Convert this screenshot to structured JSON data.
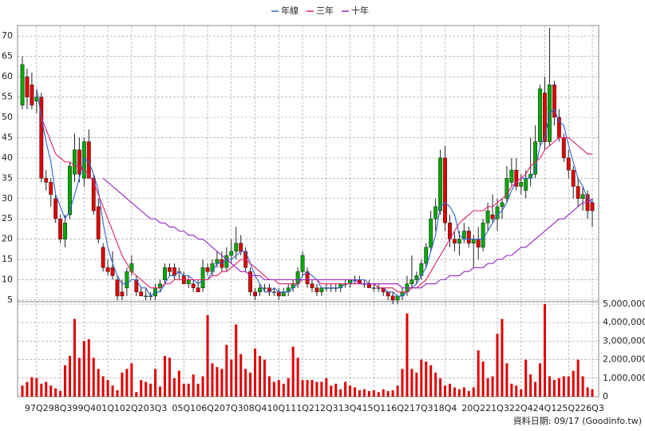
{
  "chart_data": {
    "type": "candlestick",
    "footnote": "資料日期: 09/17  (Goodinfo.tw)",
    "categories": [
      null,
      null,
      null,
      "97Q2",
      null,
      null,
      null,
      null,
      "98Q3",
      null,
      null,
      null,
      null,
      "99Q4",
      null,
      null,
      null,
      null,
      "01Q1",
      null,
      null,
      null,
      null,
      "02Q2",
      null,
      null,
      null,
      null,
      "03Q3",
      null,
      null,
      null,
      null,
      null,
      "05Q1",
      null,
      null,
      null,
      null,
      "06Q2",
      null,
      null,
      null,
      null,
      "07Q3",
      null,
      null,
      null,
      null,
      "08Q4",
      null,
      null,
      null,
      null,
      "10Q1",
      null,
      null,
      null,
      null,
      "11Q2",
      null,
      null,
      null,
      null,
      "12Q3",
      null,
      null,
      null,
      null,
      "13Q4",
      null,
      null,
      null,
      null,
      "15Q1",
      null,
      null,
      null,
      null,
      "16Q2",
      null,
      null,
      null,
      null,
      "17Q3",
      null,
      null,
      null,
      null,
      "18Q4",
      null,
      null,
      null,
      null,
      null,
      "20Q2",
      null,
      null,
      null,
      null,
      "21Q3",
      null,
      null,
      null,
      null,
      "22Q4",
      null,
      null,
      null,
      null,
      "24Q1",
      null,
      null,
      null,
      null,
      "25Q2",
      null,
      null,
      null,
      null,
      "26Q3"
    ],
    "up_color": "#00a800",
    "down_color": "#e00000",
    "candles": [
      [
        53,
        65,
        52,
        63
      ],
      [
        60,
        62,
        52,
        55
      ],
      [
        58,
        61,
        52,
        53
      ],
      [
        54,
        57,
        51,
        55
      ],
      [
        55,
        56,
        34,
        35
      ],
      [
        35,
        37,
        32,
        34
      ],
      [
        34,
        35,
        28,
        31
      ],
      [
        30,
        31,
        24,
        25
      ],
      [
        25,
        26,
        19,
        20
      ],
      [
        20,
        26,
        18,
        24
      ],
      [
        26,
        39,
        25,
        38
      ],
      [
        36,
        46,
        34,
        42
      ],
      [
        42,
        45,
        34,
        36
      ],
      [
        35,
        45,
        33,
        44
      ],
      [
        44,
        47,
        35,
        35
      ],
      [
        35,
        36,
        26,
        27
      ],
      [
        28,
        30,
        19,
        20
      ],
      [
        18,
        19,
        12,
        13
      ],
      [
        13,
        15,
        11,
        12
      ],
      [
        13,
        17,
        10,
        11
      ],
      [
        10,
        11,
        5,
        6
      ],
      [
        7,
        10,
        5,
        6
      ],
      [
        8,
        13,
        6,
        12
      ],
      [
        12,
        16,
        11,
        14
      ],
      [
        10,
        11,
        6,
        7
      ],
      [
        7,
        8,
        6,
        6
      ],
      [
        6,
        8,
        5,
        6
      ],
      [
        6,
        7,
        5,
        6
      ],
      [
        6,
        9,
        5,
        8
      ],
      [
        8,
        10,
        7,
        9
      ],
      [
        10,
        14,
        9,
        13
      ],
      [
        13,
        14,
        11,
        12
      ],
      [
        13,
        14,
        10,
        11
      ],
      [
        12,
        13,
        10,
        12
      ],
      [
        11,
        12,
        9,
        9
      ],
      [
        9,
        11,
        8,
        10
      ],
      [
        9,
        10,
        7,
        8
      ],
      [
        8,
        10,
        7,
        7
      ],
      [
        8,
        15,
        7,
        13
      ],
      [
        13,
        14,
        11,
        12
      ],
      [
        12,
        15,
        11,
        14
      ],
      [
        14,
        17,
        13,
        15
      ],
      [
        15,
        17,
        12,
        13
      ],
      [
        13,
        18,
        12,
        16
      ],
      [
        16,
        20,
        14,
        17
      ],
      [
        17,
        23,
        15,
        19
      ],
      [
        19,
        21,
        16,
        17
      ],
      [
        17,
        18,
        12,
        13
      ],
      [
        12,
        13,
        6,
        7
      ],
      [
        7,
        8,
        5,
        6
      ],
      [
        7,
        9,
        6,
        8
      ],
      [
        8,
        9,
        7,
        8
      ],
      [
        8,
        9,
        6,
        7
      ],
      [
        7,
        8,
        6,
        7
      ],
      [
        7,
        8,
        5,
        6
      ],
      [
        6,
        8,
        6,
        7
      ],
      [
        7,
        9,
        6,
        8
      ],
      [
        8,
        10,
        7,
        9
      ],
      [
        9,
        13,
        8,
        12
      ],
      [
        12,
        17,
        11,
        16
      ],
      [
        12,
        13,
        8,
        9
      ],
      [
        9,
        10,
        7,
        8
      ],
      [
        8,
        9,
        6,
        7
      ],
      [
        7,
        8,
        6,
        8
      ],
      [
        8,
        9,
        7,
        8
      ],
      [
        8,
        9,
        7,
        8
      ],
      [
        8,
        9,
        7,
        8
      ],
      [
        8,
        9,
        7,
        9
      ],
      [
        9,
        10,
        8,
        9
      ],
      [
        9,
        10,
        8,
        10
      ],
      [
        10,
        11,
        9,
        10
      ],
      [
        10,
        11,
        9,
        9
      ],
      [
        9,
        10,
        8,
        9
      ],
      [
        9,
        10,
        8,
        8
      ],
      [
        8,
        9,
        7,
        8
      ],
      [
        8,
        9,
        7,
        8
      ],
      [
        8,
        8,
        6,
        7
      ],
      [
        7,
        7,
        5,
        6
      ],
      [
        6,
        7,
        4,
        5
      ],
      [
        5,
        6,
        4,
        6
      ],
      [
        6,
        8,
        5,
        7
      ],
      [
        7,
        11,
        6,
        9
      ],
      [
        9,
        16,
        8,
        10
      ],
      [
        10,
        12,
        9,
        11
      ],
      [
        11,
        15,
        10,
        14
      ],
      [
        14,
        19,
        13,
        18
      ],
      [
        18,
        27,
        17,
        25
      ],
      [
        25,
        30,
        22,
        28
      ],
      [
        27,
        42,
        26,
        40
      ],
      [
        40,
        43,
        22,
        24
      ],
      [
        24,
        26,
        18,
        20
      ],
      [
        20,
        22,
        17,
        19
      ],
      [
        19,
        22,
        16,
        20
      ],
      [
        20,
        24,
        19,
        22
      ],
      [
        22,
        23,
        18,
        19
      ],
      [
        19,
        21,
        13,
        20
      ],
      [
        20,
        23,
        15,
        18
      ],
      [
        18,
        25,
        17,
        24
      ],
      [
        24,
        29,
        22,
        27
      ],
      [
        26,
        31,
        24,
        25
      ],
      [
        25,
        30,
        22,
        28
      ],
      [
        28,
        30,
        25,
        29
      ],
      [
        30,
        38,
        29,
        35
      ],
      [
        34,
        40,
        33,
        37
      ],
      [
        37,
        40,
        32,
        33
      ],
      [
        33,
        36,
        31,
        34
      ],
      [
        32,
        37,
        30,
        35
      ],
      [
        35,
        45,
        33,
        36
      ],
      [
        36,
        48,
        35,
        44
      ],
      [
        44,
        58,
        43,
        57
      ],
      [
        56,
        60,
        42,
        44
      ],
      [
        44,
        72,
        43,
        58
      ],
      [
        58,
        59,
        48,
        50
      ],
      [
        50,
        52,
        44,
        45
      ],
      [
        45,
        46,
        39,
        40
      ],
      [
        40,
        42,
        35,
        37
      ],
      [
        37,
        38,
        30,
        33
      ],
      [
        33,
        35,
        28,
        30
      ],
      [
        30,
        33,
        27,
        31
      ],
      [
        31,
        32,
        25,
        27
      ],
      [
        29,
        30,
        23,
        27
      ]
    ],
    "series": [
      {
        "name": "年線",
        "color": "#2f62d8",
        "values": [
          null,
          null,
          null,
          57,
          50,
          44,
          39,
          31,
          28,
          25,
          27,
          31,
          35,
          40,
          39,
          36,
          32,
          24,
          18,
          14,
          11,
          9,
          9,
          10,
          10,
          8,
          8,
          6,
          7,
          7,
          9,
          11,
          11,
          12,
          11,
          11,
          10,
          9,
          10,
          10,
          12,
          14,
          14,
          15,
          15,
          16,
          17,
          17,
          14,
          11,
          9,
          7,
          7,
          8,
          7,
          7,
          7,
          8,
          9,
          11,
          12,
          11,
          10,
          8,
          8,
          8,
          8,
          8,
          9,
          9,
          10,
          10,
          10,
          9,
          9,
          8,
          8,
          7,
          7,
          6,
          6,
          7,
          8,
          9,
          11,
          13,
          17,
          21,
          28,
          29,
          28,
          26,
          21,
          20,
          20,
          20,
          20,
          20,
          22,
          24,
          26,
          27,
          29,
          32,
          34,
          35,
          35,
          35,
          37,
          43,
          45,
          51,
          52,
          49,
          48,
          43,
          39,
          35,
          33,
          30,
          29
        ]
      },
      {
        "name": "三年",
        "color": "#e0206a",
        "values": [
          null,
          null,
          null,
          null,
          50,
          47,
          44,
          41,
          40,
          39,
          39,
          38,
          38,
          37,
          36,
          34,
          31,
          28,
          25,
          22,
          19,
          16,
          14,
          12,
          11,
          10,
          9,
          8,
          8,
          8,
          9,
          9,
          10,
          10,
          10,
          10,
          10,
          10,
          10,
          10,
          11,
          11,
          12,
          12,
          13,
          14,
          15,
          15,
          14,
          13,
          12,
          11,
          10,
          10,
          9,
          9,
          9,
          9,
          9,
          10,
          10,
          10,
          10,
          9,
          9,
          9,
          9,
          9,
          9,
          9,
          9,
          9,
          9,
          9,
          9,
          8,
          8,
          8,
          8,
          7,
          7,
          7,
          8,
          8,
          9,
          10,
          12,
          14,
          16,
          18,
          20,
          22,
          24,
          25,
          26,
          27,
          27,
          27,
          28,
          28,
          29,
          30,
          31,
          33,
          34,
          35,
          36,
          38,
          39,
          40,
          42,
          43,
          44,
          45,
          45,
          45,
          44,
          43,
          42,
          41,
          41
        ]
      },
      {
        "name": "十年",
        "color": "#9a20c8",
        "values": [
          null,
          null,
          null,
          null,
          null,
          null,
          null,
          null,
          null,
          null,
          null,
          null,
          null,
          null,
          null,
          null,
          null,
          35,
          34,
          33,
          32,
          31,
          30,
          29,
          28,
          27,
          26,
          25,
          25,
          24,
          24,
          23,
          23,
          22,
          22,
          21,
          21,
          20,
          20,
          19,
          18,
          17,
          16,
          15,
          14,
          13,
          12,
          12,
          11,
          11,
          11,
          10,
          10,
          10,
          10,
          10,
          10,
          10,
          10,
          10,
          10,
          10,
          10,
          10,
          10,
          10,
          10,
          10,
          10,
          10,
          10,
          9,
          9,
          9,
          9,
          9,
          9,
          9,
          9,
          9,
          8,
          8,
          8,
          8,
          8,
          9,
          9,
          9,
          10,
          10,
          11,
          11,
          11,
          12,
          12,
          13,
          13,
          13,
          14,
          14,
          15,
          15,
          16,
          16,
          17,
          18,
          18,
          19,
          20,
          21,
          22,
          23,
          24,
          25,
          25,
          26,
          27,
          28,
          29,
          29,
          30
        ]
      }
    ],
    "ylim": [
      4.6,
      72.6
    ],
    "yticks": [
      5,
      10,
      15,
      20,
      25,
      30,
      35,
      40,
      45,
      50,
      55,
      60,
      65,
      70
    ],
    "grid": true,
    "volume": {
      "color": "#e00000",
      "values": [
        600000,
        800000,
        1050000,
        1000000,
        700000,
        800000,
        600000,
        450000,
        300000,
        1700000,
        2200000,
        4200000,
        2100000,
        3000000,
        3100000,
        2100000,
        1500000,
        1100000,
        900000,
        600000,
        350000,
        1300000,
        1500000,
        1800000,
        250000,
        900000,
        800000,
        700000,
        1500000,
        550000,
        2200000,
        2100000,
        1000000,
        1400000,
        700000,
        700000,
        1200000,
        700000,
        1100000,
        4400000,
        1800000,
        1600000,
        1500000,
        2800000,
        2000000,
        3900000,
        2300000,
        1500000,
        1300000,
        2600000,
        2200000,
        2000000,
        1100000,
        800000,
        900000,
        700000,
        1000000,
        2700000,
        2100000,
        900000,
        900000,
        900000,
        800000,
        800000,
        1000000,
        600000,
        700000,
        400000,
        800000,
        600000,
        500000,
        350000,
        400000,
        300000,
        350000,
        250000,
        400000,
        300000,
        350000,
        600000,
        1500000,
        4500000,
        1500000,
        1300000,
        2000000,
        1900000,
        1700000,
        1300000,
        1000000,
        600000,
        700000,
        500000,
        400000,
        500000,
        300000,
        500000,
        2500000,
        1900000,
        1000000,
        1100000,
        3400000,
        4200000,
        1800000,
        700000,
        600000,
        400000,
        2000000,
        1200000,
        800000,
        1800000,
        5000000,
        1100000,
        900000,
        1000000,
        1100000,
        1100000,
        1400000,
        2000000,
        1100000,
        500000,
        400000
      ],
      "ylim": [
        0,
        5130000
      ],
      "yticks": [
        0,
        {
          "value": 1000000,
          "label": "1,000,000"
        },
        {
          "value": 2000000,
          "label": "2,000,000"
        },
        {
          "value": 3000000,
          "label": "3,000,000"
        },
        {
          "value": 4000000,
          "label": "4,000,000"
        },
        {
          "value": 5000000,
          "label": "5,000,000"
        }
      ]
    }
  }
}
